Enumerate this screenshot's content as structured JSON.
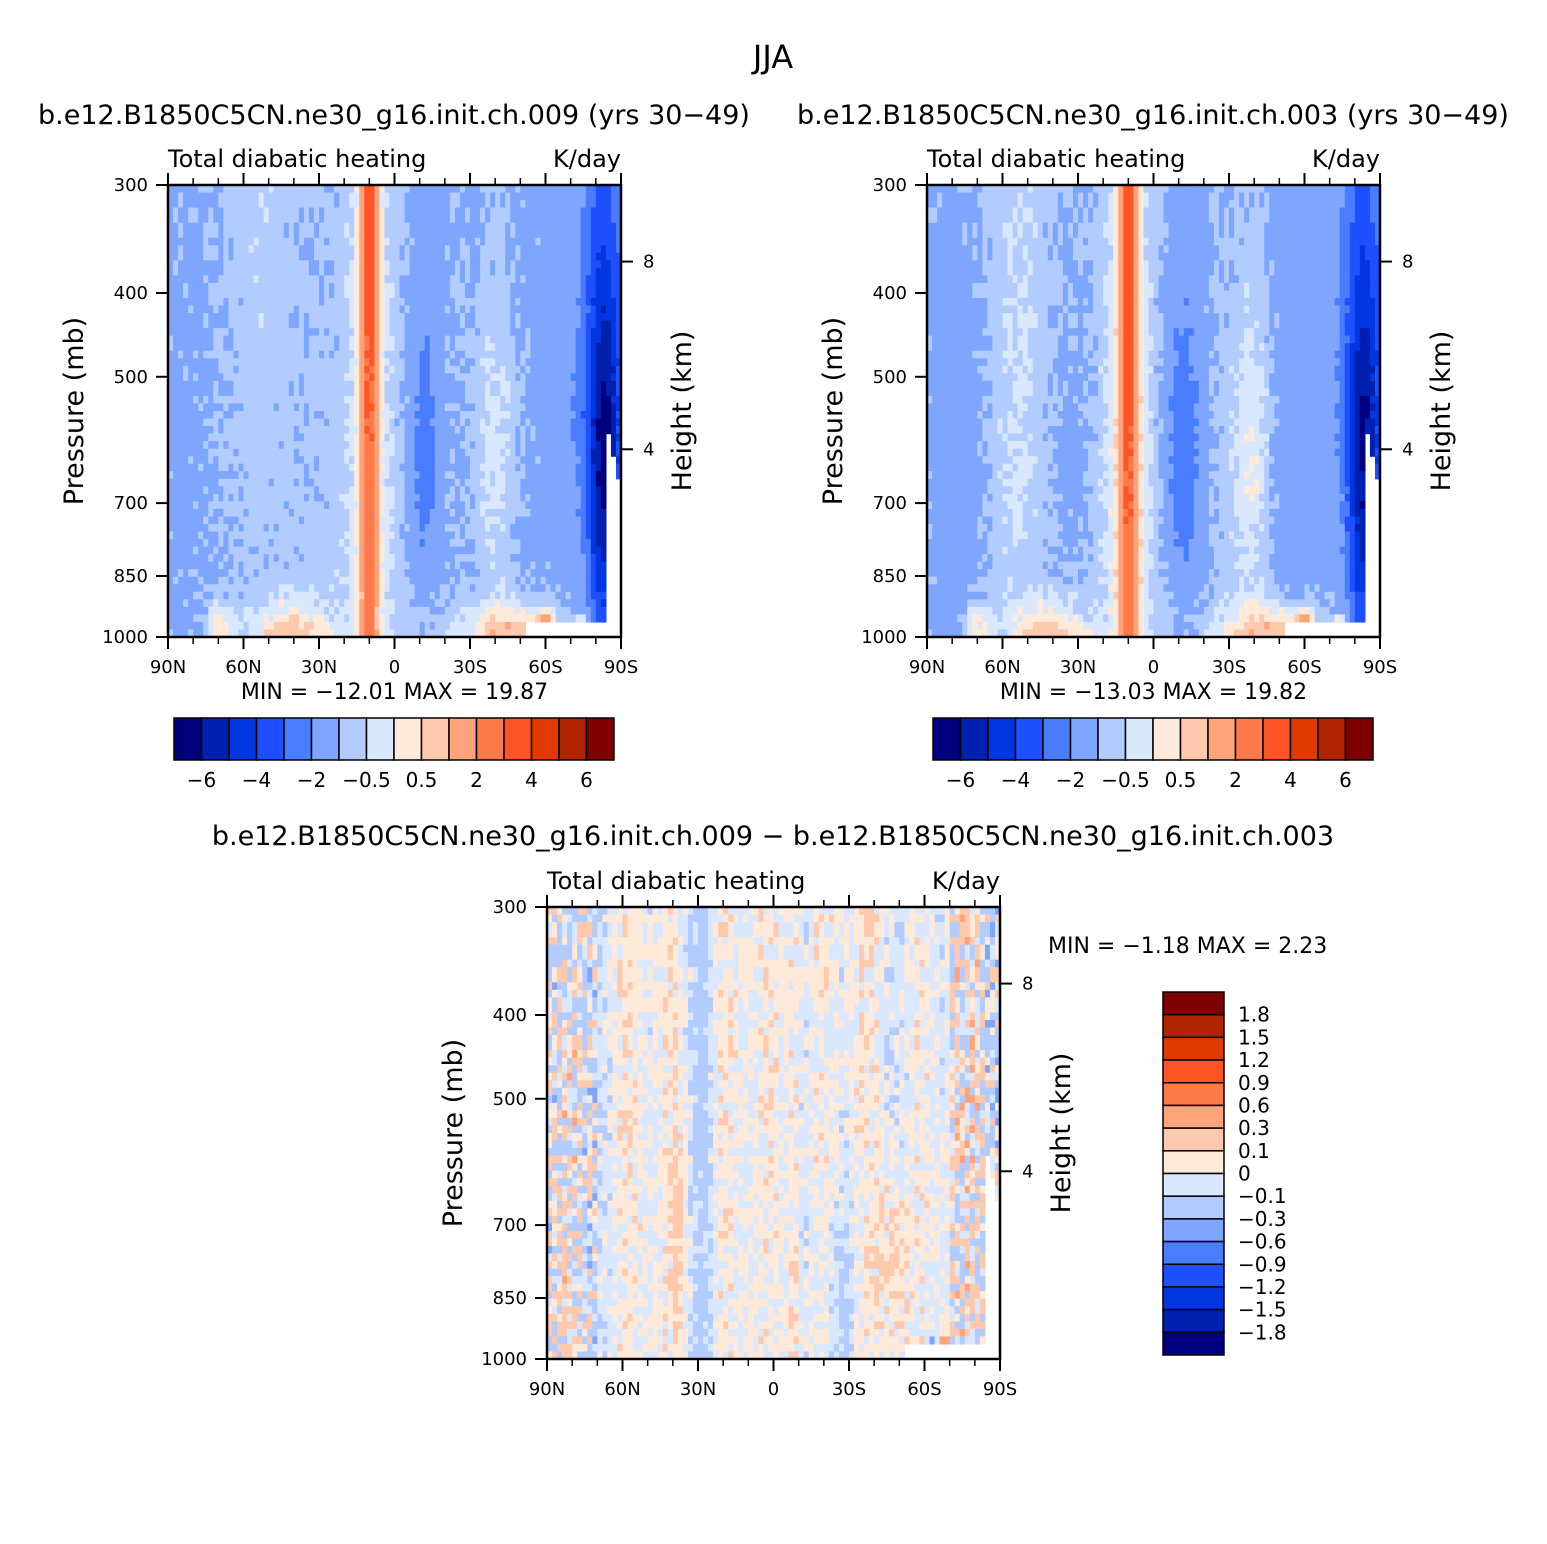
{
  "figure": {
    "title": "JJA"
  },
  "colors": {
    "abs_levels": [
      "#00007f",
      "#0020b0",
      "#0037e0",
      "#1f50ff",
      "#4a7cff",
      "#7ea6ff",
      "#b2ccff",
      "#d9e8ff",
      "#ffeada",
      "#ffc9ad",
      "#ffa37a",
      "#ff7a4a",
      "#ff5526",
      "#e03a00",
      "#b02400",
      "#7f0000"
    ],
    "diff_levels": [
      "#00007f",
      "#0020b0",
      "#0037e0",
      "#1f50ff",
      "#4a7cff",
      "#7ea6ff",
      "#b2ccff",
      "#d9e8ff",
      "#ffeada",
      "#ffc9ad",
      "#ffa37a",
      "#ff7a4a",
      "#ff5526",
      "#e03a00",
      "#b02400",
      "#7f0000"
    ]
  },
  "chart_data": [
    {
      "type": "heatmap",
      "case_title": "b.e12.B1850C5CN.ne30_g16.init.ch.009 (yrs 30-49)",
      "subtitle_left": "Total diabatic heating",
      "subtitle_right": "K/day",
      "xlabel": "",
      "ylabel": "Pressure (mb)",
      "ylabel_right": "Height (km)",
      "x_ticks": [
        "90N",
        "60N",
        "30N",
        "0",
        "30S",
        "60S",
        "90S"
      ],
      "x_tick_values": [
        90,
        60,
        30,
        0,
        -30,
        -60,
        -90
      ],
      "y_ticks": [
        "300",
        "400",
        "500",
        "700",
        "850",
        "1000"
      ],
      "y_tick_values": [
        300,
        400,
        500,
        700,
        850,
        1000
      ],
      "y_scale": "log",
      "ylim": [
        1000,
        300
      ],
      "right_ticks": [
        "8",
        "4"
      ],
      "right_tick_values": [
        8,
        4
      ],
      "stats": "MIN = -12.01   MAX =  19.87",
      "min": -12.01,
      "max": 19.87,
      "colorbar": {
        "orientation": "horizontal",
        "levels": [
          -7,
          -6,
          -5,
          -4,
          -3,
          -2,
          -1,
          -0.5,
          0,
          0.5,
          1,
          2,
          3,
          4,
          5,
          6
        ],
        "tick_labels": [
          "-6",
          "-4",
          "-2",
          "-0.5",
          "0.5",
          "2",
          "4",
          "6"
        ]
      }
    },
    {
      "type": "heatmap",
      "case_title": "b.e12.B1850C5CN.ne30_g16.init.ch.003 (yrs 30-49)",
      "subtitle_left": "Total diabatic heating",
      "subtitle_right": "K/day",
      "xlabel": "",
      "ylabel": "Pressure (mb)",
      "ylabel_right": "Height (km)",
      "x_ticks": [
        "90N",
        "60N",
        "30N",
        "0",
        "30S",
        "60S",
        "90S"
      ],
      "x_tick_values": [
        90,
        60,
        30,
        0,
        -30,
        -60,
        -90
      ],
      "y_ticks": [
        "300",
        "400",
        "500",
        "700",
        "850",
        "1000"
      ],
      "y_tick_values": [
        300,
        400,
        500,
        700,
        850,
        1000
      ],
      "y_scale": "log",
      "ylim": [
        1000,
        300
      ],
      "right_ticks": [
        "8",
        "4"
      ],
      "right_tick_values": [
        8,
        4
      ],
      "stats": "MIN = -13.03   MAX =  19.82",
      "min": -13.03,
      "max": 19.82,
      "colorbar": {
        "orientation": "horizontal",
        "levels": [
          -7,
          -6,
          -5,
          -4,
          -3,
          -2,
          -1,
          -0.5,
          0,
          0.5,
          1,
          2,
          3,
          4,
          5,
          6
        ],
        "tick_labels": [
          "-6",
          "-4",
          "-2",
          "-0.5",
          "0.5",
          "2",
          "4",
          "6"
        ]
      }
    },
    {
      "type": "heatmap",
      "case_title": "b.e12.B1850C5CN.ne30_g16.init.ch.009 - b.e12.B1850C5CN.ne30_g16.init.ch.003",
      "subtitle_left": "Total diabatic heating",
      "subtitle_right": "K/day",
      "xlabel": "",
      "ylabel": "Pressure (mb)",
      "ylabel_right": "Height (km)",
      "x_ticks": [
        "90N",
        "60N",
        "30N",
        "0",
        "30S",
        "60S",
        "90S"
      ],
      "x_tick_values": [
        90,
        60,
        30,
        0,
        -30,
        -60,
        -90
      ],
      "y_ticks": [
        "300",
        "400",
        "500",
        "700",
        "850",
        "1000"
      ],
      "y_tick_values": [
        300,
        400,
        500,
        700,
        850,
        1000
      ],
      "y_scale": "log",
      "ylim": [
        1000,
        300
      ],
      "right_ticks": [
        "8",
        "4"
      ],
      "right_tick_values": [
        8,
        4
      ],
      "stats": "MIN =   -1.18   MAX =    2.23",
      "min": -1.18,
      "max": 2.23,
      "colorbar": {
        "orientation": "vertical",
        "levels": [
          -2.1,
          -1.8,
          -1.5,
          -1.2,
          -0.9,
          -0.6,
          -0.3,
          -0.1,
          0,
          0.1,
          0.3,
          0.6,
          0.9,
          1.2,
          1.5,
          1.8
        ],
        "tick_labels": [
          "1.8",
          "1.5",
          "1.2",
          "0.9",
          "0.6",
          "0.3",
          "0.1",
          "0",
          "-0.1",
          "-0.3",
          "-0.6",
          "-0.9",
          "-1.2",
          "-1.5",
          "-1.8"
        ]
      }
    }
  ]
}
